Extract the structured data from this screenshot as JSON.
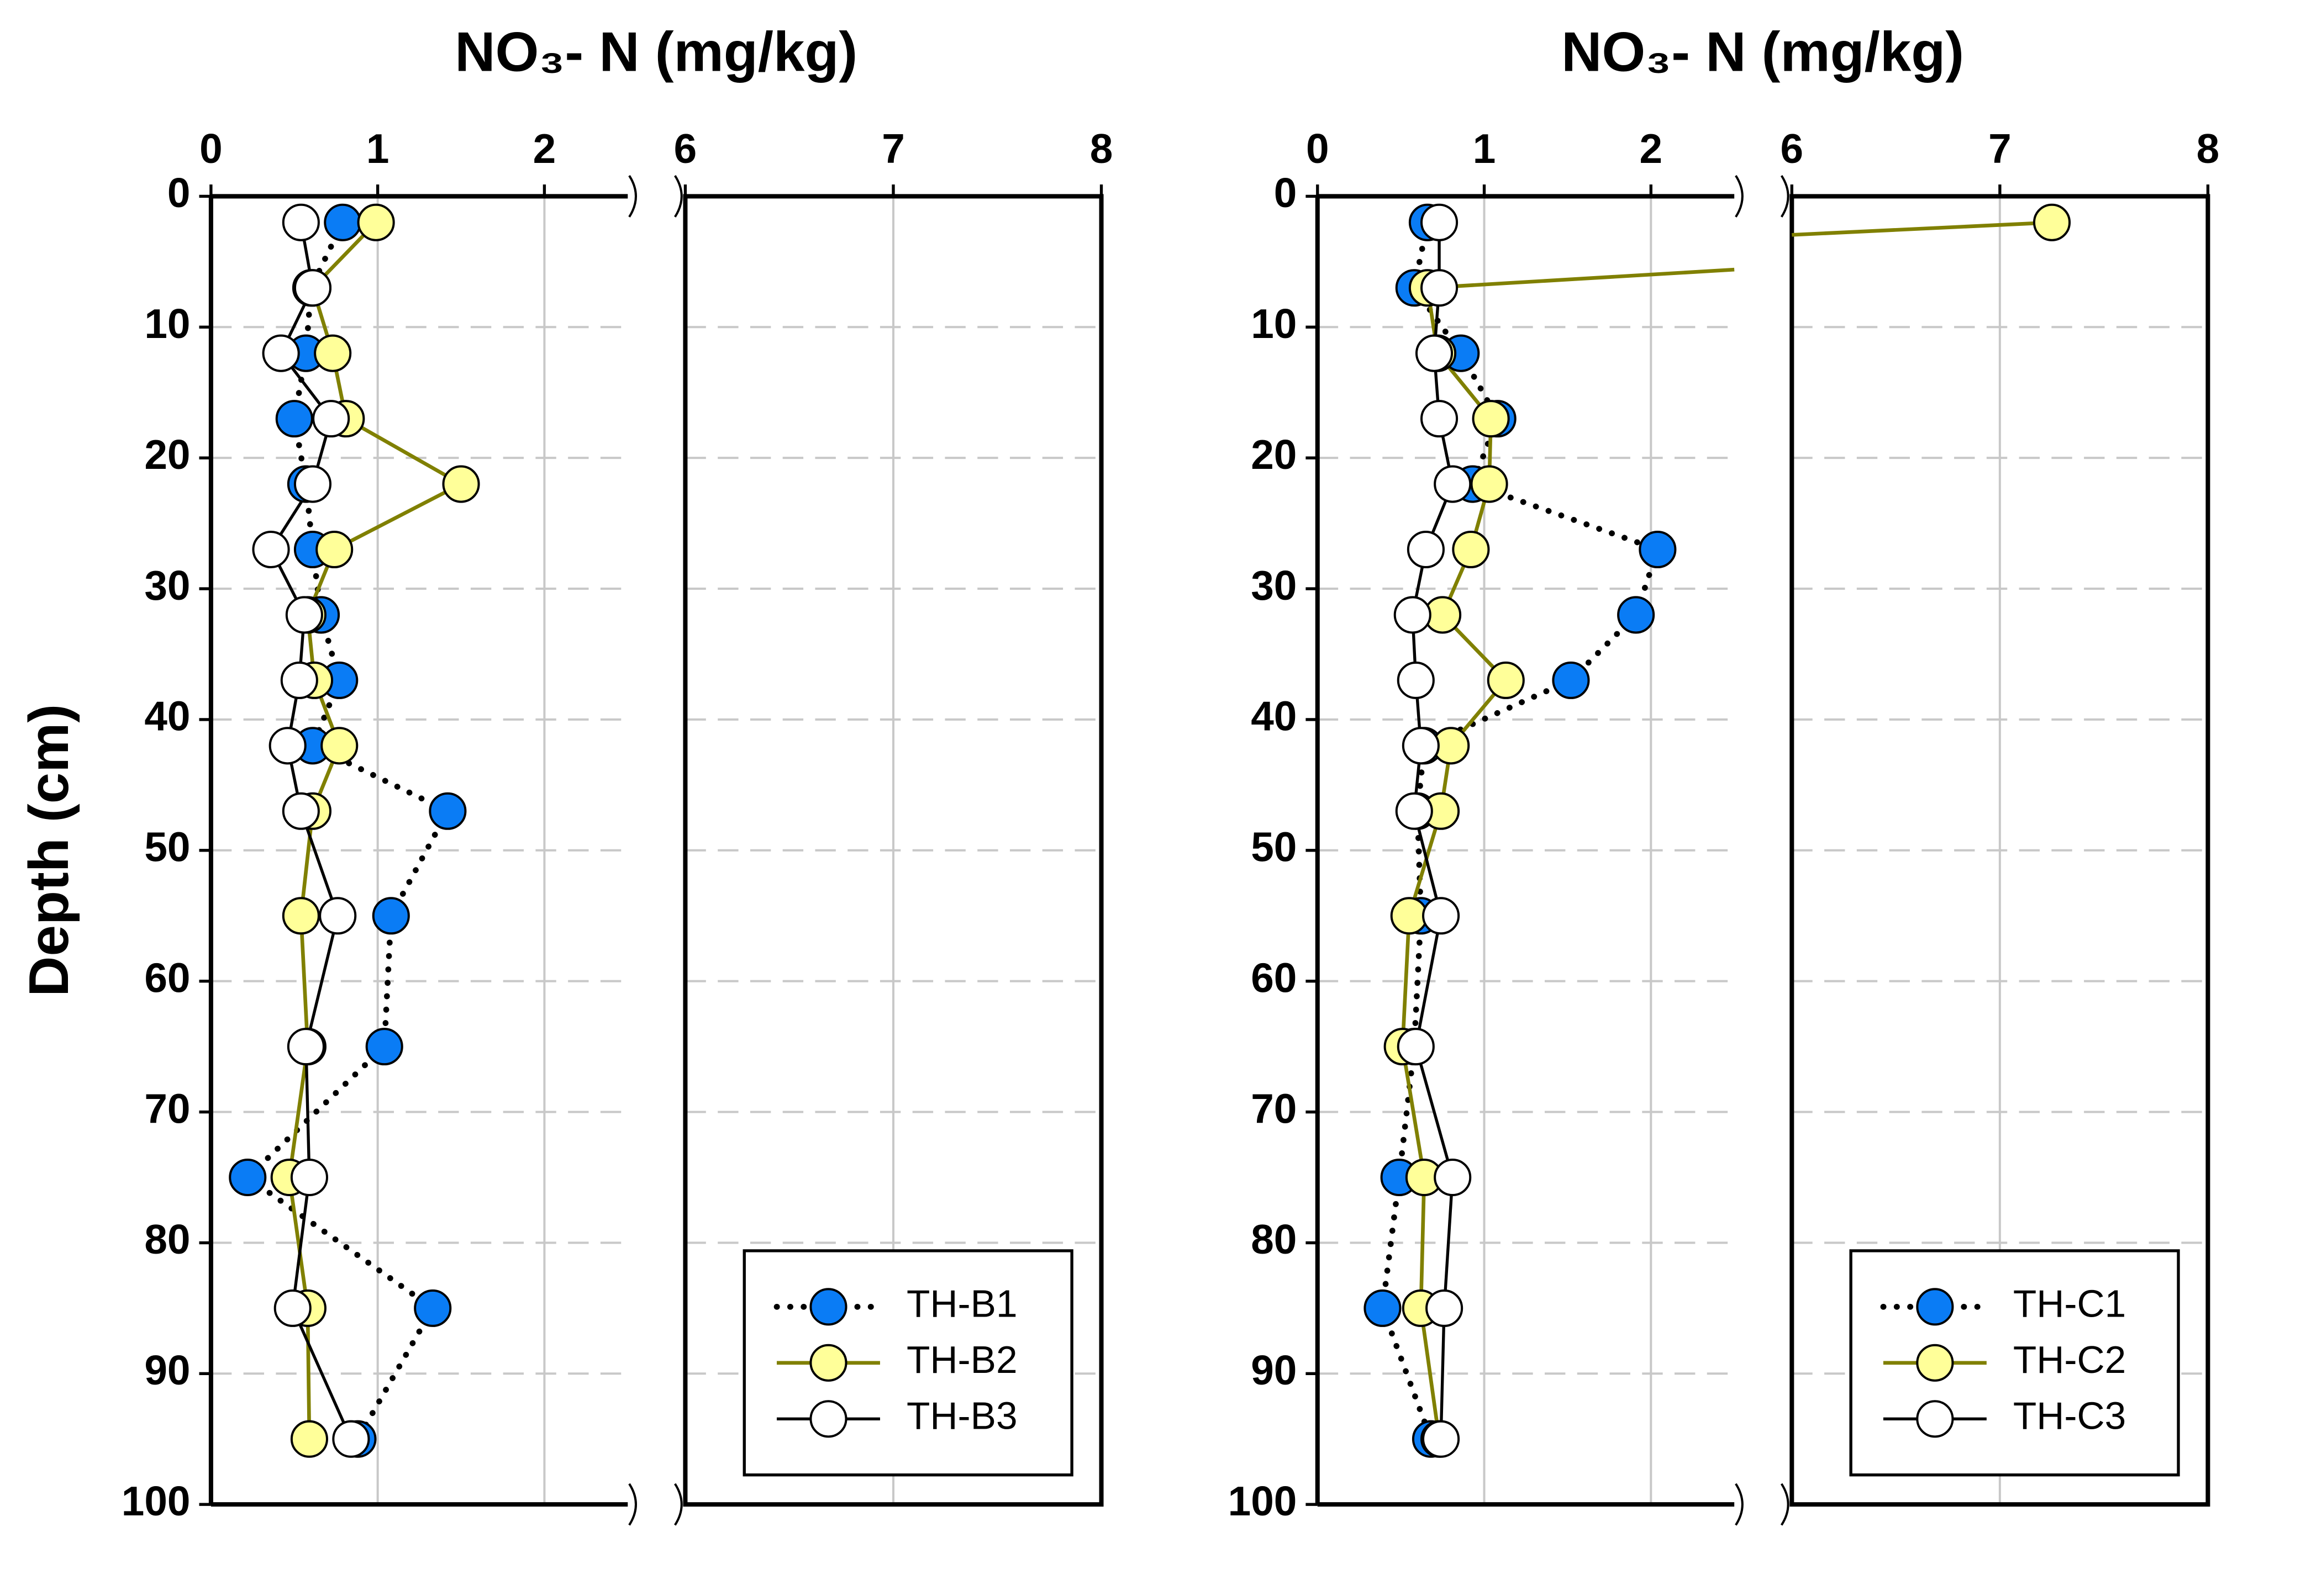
{
  "chart_data": [
    {
      "type": "line",
      "title": "NO₃- N (mg/kg)",
      "ylabel": "Depth (cm)",
      "y": [
        2,
        7,
        12,
        17,
        22,
        27,
        32,
        37,
        42,
        47,
        55,
        65,
        75,
        85,
        95
      ],
      "ylim": [
        0,
        100
      ],
      "yticks": [
        0,
        10,
        20,
        30,
        40,
        50,
        60,
        70,
        80,
        90,
        100
      ],
      "xlim": [
        0,
        8
      ],
      "x_break": [
        2.5,
        6
      ],
      "xticks": [
        0,
        1,
        2,
        6,
        7,
        8
      ],
      "grid": true,
      "legend": "lower right",
      "series": [
        {
          "name": "TH-B1",
          "color": "#0a7cf5",
          "line_color": "#000000",
          "line_style": "dotted",
          "values": [
            0.79,
            0.6,
            0.57,
            0.5,
            0.57,
            0.61,
            0.66,
            0.77,
            0.61,
            1.42,
            1.08,
            1.04,
            0.22,
            1.33,
            0.88
          ]
        },
        {
          "name": "TH-B2",
          "color": "#ffff99",
          "line_color": "#808000",
          "line_style": "solid",
          "values": [
            0.99,
            0.61,
            0.73,
            0.81,
            1.5,
            0.74,
            0.58,
            0.62,
            0.77,
            0.61,
            0.54,
            0.58,
            0.47,
            0.58,
            0.59
          ]
        },
        {
          "name": "TH-B3",
          "color": "#ffffff",
          "line_color": "#000000",
          "line_style": "solid",
          "values": [
            0.54,
            0.61,
            0.42,
            0.72,
            0.61,
            0.36,
            0.56,
            0.53,
            0.46,
            0.54,
            0.76,
            0.57,
            0.59,
            0.49,
            0.84
          ]
        }
      ]
    },
    {
      "type": "line",
      "title": "NO₃- N (mg/kg)",
      "y": [
        2,
        7,
        12,
        17,
        22,
        27,
        32,
        37,
        42,
        47,
        55,
        65,
        75,
        85,
        95
      ],
      "ylim": [
        0,
        100
      ],
      "yticks": [
        0,
        10,
        20,
        30,
        40,
        50,
        60,
        70,
        80,
        90,
        100
      ],
      "xlim": [
        0,
        8
      ],
      "x_break": [
        2.5,
        6
      ],
      "xticks": [
        0,
        1,
        2,
        6,
        7,
        8
      ],
      "grid": true,
      "legend": "lower right",
      "series": [
        {
          "name": "TH-C1",
          "color": "#0a7cf5",
          "line_color": "#000000",
          "line_style": "dotted",
          "values": [
            0.66,
            0.58,
            0.86,
            1.08,
            0.93,
            2.04,
            1.91,
            1.52,
            0.64,
            0.6,
            0.62,
            0.58,
            0.49,
            0.39,
            0.68
          ]
        },
        {
          "name": "TH-C2",
          "color": "#ffff99",
          "line_color": "#808000",
          "line_style": "solid",
          "values": [
            7.25,
            0.66,
            0.72,
            1.04,
            1.03,
            0.92,
            0.75,
            1.13,
            0.8,
            0.74,
            0.55,
            0.51,
            0.64,
            0.62,
            0.73
          ]
        },
        {
          "name": "TH-C3",
          "color": "#ffffff",
          "line_color": "#000000",
          "line_style": "solid",
          "values": [
            0.73,
            0.73,
            0.7,
            0.73,
            0.81,
            0.65,
            0.57,
            0.59,
            0.62,
            0.58,
            0.74,
            0.59,
            0.81,
            0.76,
            0.74
          ]
        }
      ]
    }
  ]
}
